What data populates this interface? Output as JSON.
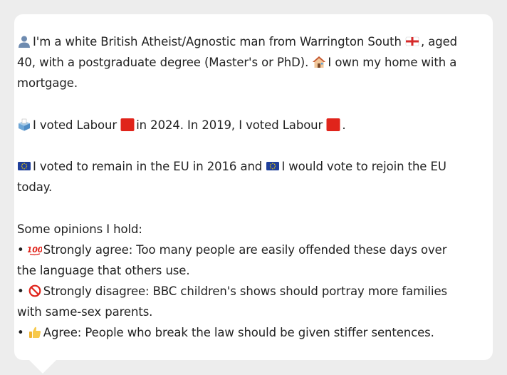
{
  "profile": {
    "line1_a": "I'm a white British Atheist/Agnostic man from Warrington South",
    "line1_b": ", aged 40, with a postgraduate degree (Master's or PhD).",
    "line1_c": "I own my home with a mortgage."
  },
  "votes": {
    "text_a": "I voted Labour",
    "text_b": "in 2024. In 2019, I voted Labour",
    "text_c": "."
  },
  "eu": {
    "text_a": "I voted to remain in the EU in 2016 and",
    "text_b": "I would vote to rejoin the EU today."
  },
  "opinions": {
    "heading": "Some opinions I hold:",
    "bullet_char": "•",
    "items": [
      {
        "icon": "hundred-points-icon",
        "text": "Strongly agree: Too many people are easily offended these days over the language that others use."
      },
      {
        "icon": "prohibited-icon",
        "text": "Strongly disagree: BBC children's shows should portray more families with same-sex parents."
      },
      {
        "icon": "thumbs-up-icon",
        "text": "Agree: People who break the law should be given stiffer sentences."
      }
    ]
  },
  "colors": {
    "labour_red": "#e0241b",
    "eu_blue": "#1f3f9b",
    "eu_star": "#f5d000"
  }
}
